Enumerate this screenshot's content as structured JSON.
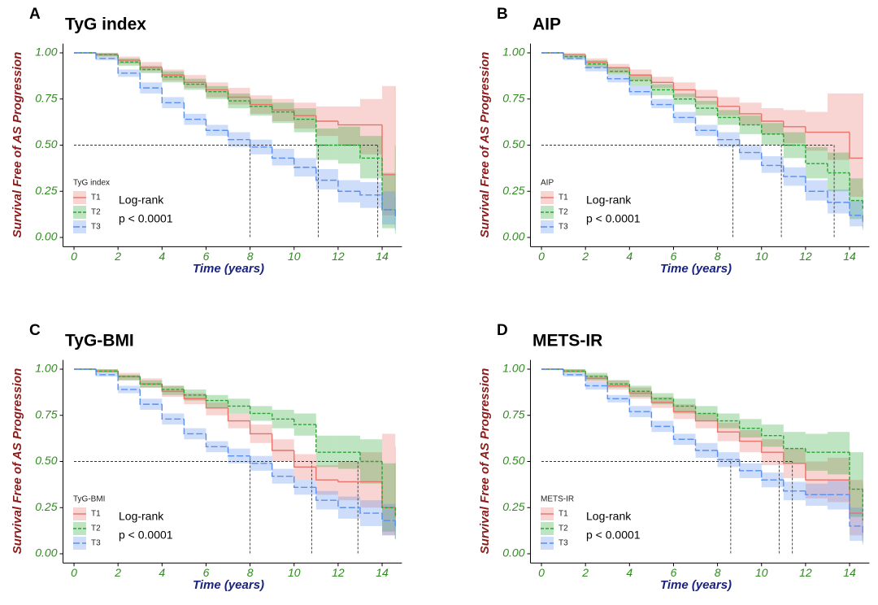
{
  "chart_data": [
    {
      "type": "line",
      "panel": "A",
      "title": "TyG index",
      "x_label": "Time (years)",
      "y_label": "Survival Free of AS Progression",
      "xlim": [
        -0.5,
        14.9
      ],
      "ylim": [
        -0.05,
        1.05
      ],
      "xticks": [
        0,
        2,
        4,
        6,
        8,
        10,
        12,
        14
      ],
      "yticks": [
        {
          "value": 0,
          "label": "0.00"
        },
        {
          "value": 0.25,
          "label": "0.25"
        },
        {
          "value": 0.5,
          "label": "0.50"
        },
        {
          "value": 0.75,
          "label": "0.75"
        },
        {
          "value": 1,
          "label": "1.00"
        }
      ],
      "legend_title": "TyG index",
      "annotation": [
        "Log-rank",
        "p < 0.0001"
      ],
      "median_y": 0.5,
      "median_x": [
        8,
        11.1,
        13.8
      ],
      "x": [
        0,
        1,
        2,
        3,
        4,
        5,
        6,
        7,
        8,
        9,
        10,
        11,
        12,
        13,
        14,
        14.6
      ],
      "series": [
        {
          "name": "T1",
          "color": "#e8736b",
          "line_style": "solid",
          "values": [
            1,
            0.99,
            0.96,
            0.92,
            0.88,
            0.84,
            0.8,
            0.76,
            0.72,
            0.69,
            0.66,
            0.63,
            0.61,
            0.61,
            0.34,
            0.34
          ],
          "lower": [
            1,
            0.98,
            0.94,
            0.9,
            0.85,
            0.81,
            0.76,
            0.72,
            0.67,
            0.63,
            0.59,
            0.55,
            0.5,
            0.45,
            0.12,
            0.12
          ],
          "upper": [
            1,
            1,
            0.98,
            0.95,
            0.91,
            0.88,
            0.84,
            0.81,
            0.77,
            0.75,
            0.73,
            0.71,
            0.71,
            0.75,
            0.82,
            0.82
          ]
        },
        {
          "name": "T2",
          "color": "#2aa534",
          "line_style": "dotted",
          "values": [
            1,
            0.99,
            0.95,
            0.91,
            0.87,
            0.83,
            0.79,
            0.74,
            0.71,
            0.68,
            0.64,
            0.5,
            0.5,
            0.43,
            0.15,
            0.12
          ],
          "lower": [
            1,
            0.98,
            0.93,
            0.89,
            0.84,
            0.8,
            0.75,
            0.7,
            0.66,
            0.62,
            0.57,
            0.42,
            0.4,
            0.32,
            0.05,
            0.02
          ],
          "upper": [
            1,
            1,
            0.97,
            0.93,
            0.9,
            0.86,
            0.82,
            0.78,
            0.75,
            0.73,
            0.7,
            0.59,
            0.6,
            0.55,
            0.35,
            0.5
          ]
        },
        {
          "name": "T3",
          "color": "#5b8ff0",
          "line_style": "dashed",
          "values": [
            1,
            0.97,
            0.89,
            0.81,
            0.73,
            0.64,
            0.58,
            0.53,
            0.49,
            0.43,
            0.38,
            0.31,
            0.25,
            0.23,
            0.15,
            0.1
          ],
          "lower": [
            1,
            0.96,
            0.87,
            0.78,
            0.7,
            0.61,
            0.55,
            0.49,
            0.45,
            0.39,
            0.33,
            0.26,
            0.19,
            0.16,
            0.07,
            0.04
          ],
          "upper": [
            1,
            0.98,
            0.91,
            0.84,
            0.76,
            0.67,
            0.61,
            0.57,
            0.53,
            0.48,
            0.43,
            0.37,
            0.31,
            0.3,
            0.25,
            0.22
          ]
        }
      ]
    },
    {
      "type": "line",
      "panel": "B",
      "title": "AIP",
      "x_label": "Time (years)",
      "y_label": "Survival Free of AS Progression",
      "xlim": [
        -0.5,
        14.9
      ],
      "ylim": [
        -0.05,
        1.05
      ],
      "xticks": [
        0,
        2,
        4,
        6,
        8,
        10,
        12,
        14
      ],
      "yticks": [
        {
          "value": 0,
          "label": "0.00"
        },
        {
          "value": 0.25,
          "label": "0.25"
        },
        {
          "value": 0.5,
          "label": "0.50"
        },
        {
          "value": 0.75,
          "label": "0.75"
        },
        {
          "value": 1,
          "label": "1.00"
        }
      ],
      "legend_title": "AIP",
      "annotation": [
        "Log-rank",
        "p < 0.0001"
      ],
      "median_y": 0.5,
      "median_x": [
        8.7,
        10.9,
        13.3
      ],
      "x": [
        0,
        1,
        2,
        3,
        4,
        5,
        6,
        7,
        8,
        9,
        10,
        11,
        12,
        13,
        14,
        14.6
      ],
      "series": [
        {
          "name": "T1",
          "color": "#e8736b",
          "line_style": "solid",
          "values": [
            1,
            0.99,
            0.95,
            0.92,
            0.88,
            0.84,
            0.8,
            0.76,
            0.71,
            0.67,
            0.63,
            0.6,
            0.57,
            0.57,
            0.43,
            0.43
          ],
          "lower": [
            1,
            0.98,
            0.93,
            0.89,
            0.85,
            0.81,
            0.76,
            0.72,
            0.66,
            0.61,
            0.56,
            0.51,
            0.47,
            0.42,
            0.22,
            0.22
          ],
          "upper": [
            1,
            1,
            0.97,
            0.94,
            0.91,
            0.87,
            0.84,
            0.8,
            0.76,
            0.73,
            0.7,
            0.69,
            0.68,
            0.78,
            0.78,
            0.78
          ]
        },
        {
          "name": "T2",
          "color": "#2aa534",
          "line_style": "dotted",
          "values": [
            1,
            0.98,
            0.94,
            0.9,
            0.85,
            0.8,
            0.75,
            0.7,
            0.65,
            0.61,
            0.56,
            0.5,
            0.4,
            0.35,
            0.2,
            0.15
          ],
          "lower": [
            1,
            0.97,
            0.92,
            0.88,
            0.82,
            0.77,
            0.72,
            0.66,
            0.61,
            0.56,
            0.5,
            0.43,
            0.32,
            0.25,
            0.1,
            0.05
          ],
          "upper": [
            1,
            0.99,
            0.96,
            0.92,
            0.88,
            0.83,
            0.78,
            0.74,
            0.69,
            0.66,
            0.62,
            0.57,
            0.49,
            0.46,
            0.32,
            0.26
          ]
        },
        {
          "name": "T3",
          "color": "#5b8ff0",
          "line_style": "dashed",
          "values": [
            1,
            0.97,
            0.92,
            0.86,
            0.79,
            0.72,
            0.65,
            0.58,
            0.53,
            0.46,
            0.39,
            0.33,
            0.25,
            0.19,
            0.12,
            0.08
          ],
          "lower": [
            1,
            0.96,
            0.9,
            0.84,
            0.77,
            0.7,
            0.62,
            0.55,
            0.49,
            0.42,
            0.35,
            0.28,
            0.2,
            0.13,
            0.06,
            0.04
          ],
          "upper": [
            1,
            0.98,
            0.93,
            0.88,
            0.82,
            0.75,
            0.68,
            0.61,
            0.57,
            0.5,
            0.44,
            0.38,
            0.31,
            0.26,
            0.2,
            0.14
          ]
        }
      ]
    },
    {
      "type": "line",
      "panel": "C",
      "title": "TyG-BMI",
      "x_label": "Time (years)",
      "y_label": "Survival Free of AS Progression",
      "xlim": [
        -0.5,
        14.9
      ],
      "ylim": [
        -0.05,
        1.05
      ],
      "xticks": [
        0,
        2,
        4,
        6,
        8,
        10,
        12,
        14
      ],
      "yticks": [
        {
          "value": 0,
          "label": "0.00"
        },
        {
          "value": 0.25,
          "label": "0.25"
        },
        {
          "value": 0.5,
          "label": "0.50"
        },
        {
          "value": 0.75,
          "label": "0.75"
        },
        {
          "value": 1,
          "label": "1.00"
        }
      ],
      "legend_title": "TyG-BMI",
      "annotation": [
        "Log-rank",
        "p < 0.0001"
      ],
      "median_y": 0.5,
      "median_x": [
        8,
        10.8,
        12.9
      ],
      "x": [
        0,
        1,
        2,
        3,
        4,
        5,
        6,
        7,
        8,
        9,
        10,
        11,
        12,
        13,
        14,
        14.6
      ],
      "series": [
        {
          "name": "T1",
          "color": "#e8736b",
          "line_style": "solid",
          "values": [
            1,
            0.99,
            0.96,
            0.92,
            0.88,
            0.84,
            0.79,
            0.72,
            0.65,
            0.56,
            0.47,
            0.4,
            0.39,
            0.39,
            0.25,
            0.2
          ],
          "lower": [
            1,
            0.98,
            0.94,
            0.9,
            0.85,
            0.81,
            0.75,
            0.68,
            0.6,
            0.5,
            0.4,
            0.32,
            0.29,
            0.25,
            0.1,
            0.08
          ],
          "upper": [
            1,
            1,
            0.98,
            0.95,
            0.91,
            0.87,
            0.82,
            0.76,
            0.7,
            0.62,
            0.54,
            0.48,
            0.5,
            0.55,
            0.65,
            0.58
          ]
        },
        {
          "name": "T2",
          "color": "#2aa534",
          "line_style": "dotted",
          "values": [
            1,
            0.99,
            0.96,
            0.92,
            0.89,
            0.86,
            0.83,
            0.8,
            0.76,
            0.73,
            0.7,
            0.55,
            0.55,
            0.5,
            0.25,
            0.2
          ],
          "lower": [
            1,
            0.98,
            0.94,
            0.9,
            0.86,
            0.83,
            0.79,
            0.76,
            0.72,
            0.68,
            0.64,
            0.47,
            0.46,
            0.38,
            0.12,
            0.08
          ],
          "upper": [
            1,
            1,
            0.97,
            0.94,
            0.91,
            0.89,
            0.86,
            0.84,
            0.8,
            0.78,
            0.76,
            0.64,
            0.64,
            0.62,
            0.49,
            0.49
          ]
        },
        {
          "name": "T3",
          "color": "#5b8ff0",
          "line_style": "dashed",
          "values": [
            1,
            0.97,
            0.89,
            0.81,
            0.73,
            0.65,
            0.58,
            0.53,
            0.49,
            0.42,
            0.36,
            0.29,
            0.25,
            0.22,
            0.18,
            0.15
          ],
          "lower": [
            1,
            0.96,
            0.87,
            0.78,
            0.7,
            0.62,
            0.55,
            0.49,
            0.45,
            0.38,
            0.32,
            0.24,
            0.19,
            0.15,
            0.1,
            0.08
          ],
          "upper": [
            1,
            0.98,
            0.91,
            0.84,
            0.76,
            0.68,
            0.61,
            0.57,
            0.53,
            0.46,
            0.4,
            0.34,
            0.31,
            0.29,
            0.27,
            0.24
          ]
        }
      ]
    },
    {
      "type": "line",
      "panel": "D",
      "title": "METS-IR",
      "x_label": "Time (years)",
      "y_label": "Survival Free of AS Progression",
      "xlim": [
        -0.5,
        14.9
      ],
      "ylim": [
        -0.05,
        1.05
      ],
      "xticks": [
        0,
        2,
        4,
        6,
        8,
        10,
        12,
        14
      ],
      "yticks": [
        {
          "value": 0,
          "label": "0.00"
        },
        {
          "value": 0.25,
          "label": "0.25"
        },
        {
          "value": 0.5,
          "label": "0.50"
        },
        {
          "value": 0.75,
          "label": "0.75"
        },
        {
          "value": 1,
          "label": "1.00"
        }
      ],
      "legend_title": "METS-IR",
      "annotation": [
        "Log-rank",
        "p < 0.0001"
      ],
      "median_y": 0.5,
      "median_x": [
        8.6,
        10.8,
        11.4
      ],
      "x": [
        0,
        1,
        2,
        3,
        4,
        5,
        6,
        7,
        8,
        9,
        10,
        11,
        12,
        13,
        14,
        14.6
      ],
      "series": [
        {
          "name": "T1",
          "color": "#e8736b",
          "line_style": "solid",
          "values": [
            1,
            0.99,
            0.95,
            0.91,
            0.87,
            0.82,
            0.77,
            0.72,
            0.66,
            0.61,
            0.55,
            0.49,
            0.4,
            0.4,
            0.22,
            0.2
          ],
          "lower": [
            1,
            0.98,
            0.93,
            0.89,
            0.84,
            0.79,
            0.73,
            0.68,
            0.61,
            0.55,
            0.48,
            0.41,
            0.3,
            0.28,
            0.1,
            0.08
          ],
          "upper": [
            1,
            1,
            0.97,
            0.94,
            0.9,
            0.85,
            0.81,
            0.76,
            0.71,
            0.67,
            0.62,
            0.57,
            0.5,
            0.52,
            0.4,
            0.38
          ]
        },
        {
          "name": "T2",
          "color": "#2aa534",
          "line_style": "dotted",
          "values": [
            1,
            0.99,
            0.96,
            0.92,
            0.88,
            0.84,
            0.8,
            0.76,
            0.72,
            0.68,
            0.64,
            0.57,
            0.55,
            0.55,
            0.35,
            0.18
          ],
          "lower": [
            1,
            0.98,
            0.94,
            0.9,
            0.85,
            0.81,
            0.76,
            0.72,
            0.68,
            0.63,
            0.58,
            0.49,
            0.45,
            0.43,
            0.2,
            0.06
          ],
          "upper": [
            1,
            1,
            0.98,
            0.94,
            0.91,
            0.87,
            0.84,
            0.8,
            0.76,
            0.73,
            0.7,
            0.66,
            0.65,
            0.66,
            0.55,
            0.55
          ]
        },
        {
          "name": "T3",
          "color": "#5b8ff0",
          "line_style": "dashed",
          "values": [
            1,
            0.97,
            0.91,
            0.84,
            0.77,
            0.69,
            0.62,
            0.56,
            0.51,
            0.45,
            0.4,
            0.34,
            0.32,
            0.32,
            0.15,
            0.1
          ],
          "lower": [
            1,
            0.96,
            0.89,
            0.82,
            0.74,
            0.66,
            0.59,
            0.52,
            0.47,
            0.41,
            0.36,
            0.29,
            0.26,
            0.24,
            0.07,
            0.05
          ],
          "upper": [
            1,
            0.98,
            0.93,
            0.86,
            0.8,
            0.72,
            0.65,
            0.6,
            0.55,
            0.49,
            0.44,
            0.39,
            0.38,
            0.4,
            0.25,
            0.2
          ]
        }
      ]
    }
  ]
}
